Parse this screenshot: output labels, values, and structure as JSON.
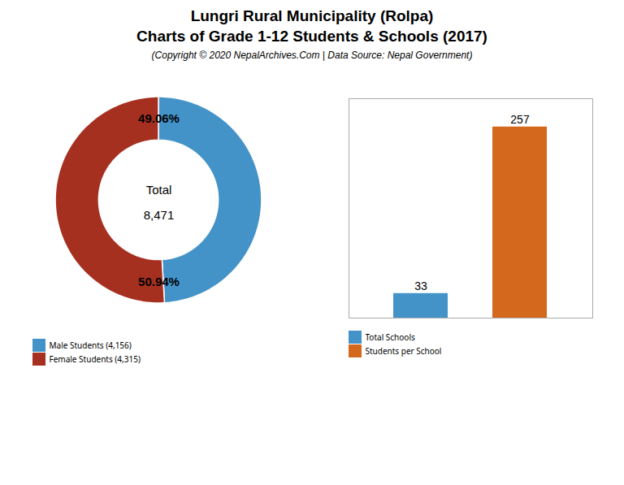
{
  "chart_data": [
    {
      "type": "pie",
      "title": "Lungri Rural Municipality (Rolpa)\nCharts of Grade 1-12 Students & Schools (2017)",
      "subtitle": "(Copyright © 2020 NepalArchives.Com | Data Source: Nepal Government)",
      "categories": [
        "Male Students (4,156)",
        "Female Students (4,315)"
      ],
      "values": [
        49.06,
        50.94
      ],
      "value_labels": [
        "49.06%",
        "50.94%"
      ],
      "data_labels": true,
      "colors": [
        "#4393c9",
        "#a63020"
      ],
      "annotations": [
        "Total",
        "8,471"
      ],
      "legend": "bottom",
      "tick_labels": false
    },
    {
      "type": "bar",
      "categories": [
        "Total Schools",
        "Students per School"
      ],
      "values": [
        33,
        257
      ],
      "colors": [
        "#4393c9",
        "#d4691e"
      ],
      "ylim": [
        0,
        295
      ],
      "yticks": [],
      "data_labels": true,
      "tick_labels": false,
      "legend": "bottom"
    }
  ]
}
